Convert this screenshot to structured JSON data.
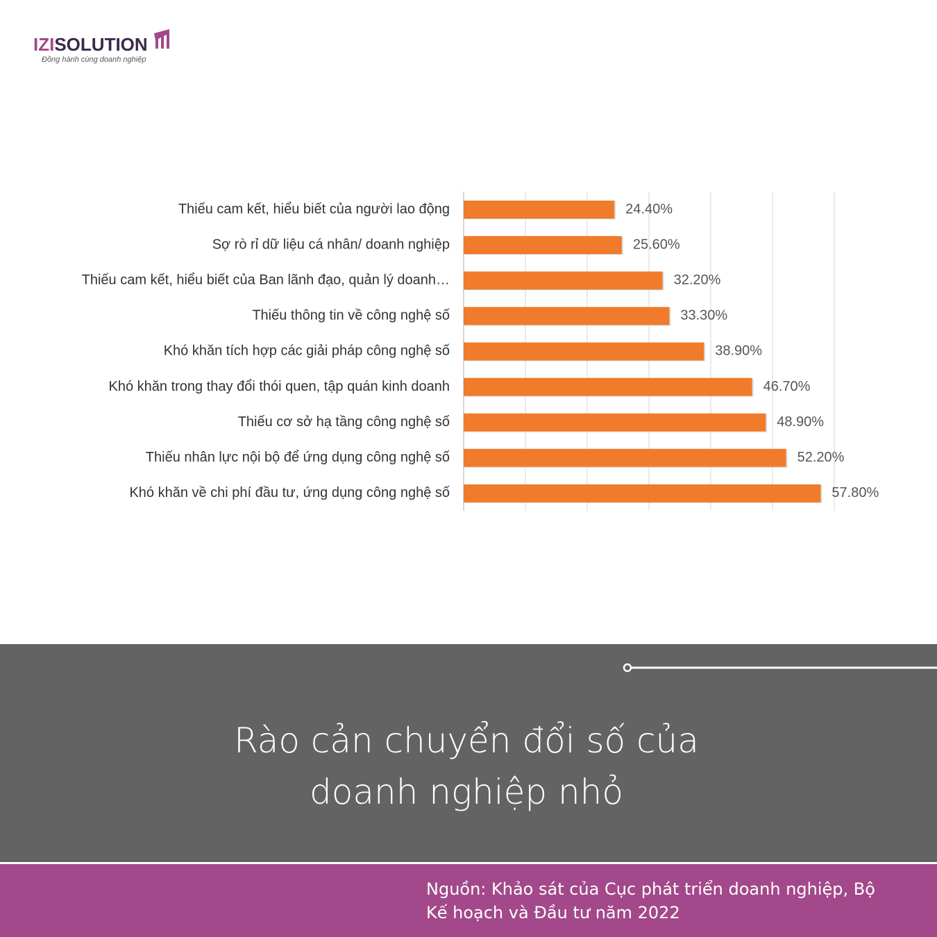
{
  "logo": {
    "brand_a": "IZI",
    "brand_b": "SOLUTION",
    "tagline": "Đồng hành cùng doanh nghiệp"
  },
  "chart_data": {
    "type": "bar",
    "orientation": "horizontal",
    "categories": [
      "Thiếu cam kết, hiểu biết của người lao động",
      "Sợ rò rỉ dữ liệu cá nhân/ doanh nghiệp",
      "Thiếu cam kết, hiểu biết của Ban lãnh đạo, quản lý doanh…",
      "Thiếu thông tin về công nghệ số",
      "Khó khăn tích hợp các giải pháp công nghệ số",
      "Khó khăn trong thay đổi thói quen, tập quán kinh doanh",
      "Thiếu cơ sở hạ tầng công nghệ số",
      "Thiếu nhân lực nội bộ để ứng dụng công nghệ số",
      "Khó khăn về chi phí đầu tư, ứng dụng công nghệ số"
    ],
    "values": [
      24.4,
      25.6,
      32.2,
      33.3,
      38.9,
      46.7,
      48.9,
      52.2,
      57.8
    ],
    "value_labels": [
      "24.40%",
      "25.60%",
      "32.20%",
      "33.30%",
      "38.90%",
      "46.70%",
      "48.90%",
      "52.20%",
      "57.80%"
    ],
    "color": "#f07b2a",
    "xlim": [
      0,
      60
    ],
    "xticks": [
      0,
      10,
      20,
      30,
      40,
      50,
      60
    ],
    "grid": true,
    "title": "Rào cản chuyển đổi số của doanh nghiệp nhỏ"
  },
  "source": "Nguồn: Khảo sát của Cục phát triển doanh nghiệp, Bộ Kế hoạch và Đầu tư năm 2022"
}
